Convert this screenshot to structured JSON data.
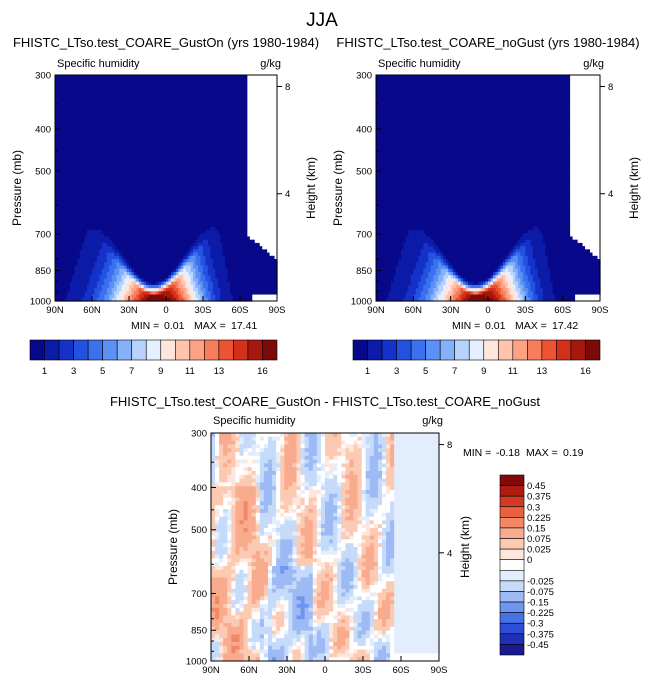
{
  "figure": {
    "title": "JJA"
  },
  "colors": {
    "abs_levels": [
      "#08088a",
      "#0c1ba8",
      "#1432c9",
      "#2452e0",
      "#3b70ee",
      "#5b90f5",
      "#85b1fa",
      "#b6d2fd",
      "#e6efff",
      "#ffe6dc",
      "#ffc4ad",
      "#fda283",
      "#f77d5b",
      "#ec5333",
      "#d42f1b",
      "#a8170e",
      "#7d0a0a"
    ],
    "diff_levels": [
      "#1a1a8f",
      "#1f2fb8",
      "#2d4fd8",
      "#4572e8",
      "#6e96f0",
      "#9dbaf5",
      "#c6daf9",
      "#e2eefd",
      "#ffffff",
      "#fde6dc",
      "#fccab3",
      "#f9ab8e",
      "#f38868",
      "#e8623f",
      "#d33a23",
      "#b01c12",
      "#820a0a"
    ]
  },
  "chart_data": [
    {
      "type": "heatmap",
      "title": "FHISTC_LTso.test_COARE_GustOn (yrs 1980-1984)",
      "left_string": "Specific humidity",
      "right_string": "g/kg",
      "xlabel": "",
      "ylabel": "Pressure (mb)",
      "ylabel_right": "Height (km)",
      "x_ticks": [
        "90N",
        "60N",
        "30N",
        "0",
        "30S",
        "60S",
        "90S"
      ],
      "x_tick_values": [
        90,
        60,
        30,
        0,
        -30,
        -60,
        -90
      ],
      "y_ticks": [
        "300",
        "400",
        "500",
        "700",
        "850",
        "1000"
      ],
      "y_tick_values": [
        300,
        400,
        500,
        700,
        850,
        1000
      ],
      "y_scale": "log",
      "right_ticks": [
        "8",
        "4"
      ],
      "right_tick_values": [
        8,
        4
      ],
      "stats": {
        "min_label": "MIN =",
        "min": "0.01",
        "max_label": "MAX =",
        "max": "17.41"
      },
      "colorbar_labels": [
        "1",
        "3",
        "5",
        "7",
        "9",
        "11",
        "13",
        "16"
      ],
      "colorbar_levels": 17,
      "colorbar_orientation": "horizontal",
      "colorbar_placement": "bottom"
    },
    {
      "type": "heatmap",
      "title": "FHISTC_LTso.test_COARE_noGust (yrs 1980-1984)",
      "left_string": "Specific humidity",
      "right_string": "g/kg",
      "xlabel": "",
      "ylabel": "Pressure (mb)",
      "ylabel_right": "Height (km)",
      "x_ticks": [
        "90N",
        "60N",
        "30N",
        "0",
        "30S",
        "60S",
        "90S"
      ],
      "x_tick_values": [
        90,
        60,
        30,
        0,
        -30,
        -60,
        -90
      ],
      "y_ticks": [
        "300",
        "400",
        "500",
        "700",
        "850",
        "1000"
      ],
      "y_tick_values": [
        300,
        400,
        500,
        700,
        850,
        1000
      ],
      "y_scale": "log",
      "right_ticks": [
        "8",
        "4"
      ],
      "right_tick_values": [
        8,
        4
      ],
      "stats": {
        "min_label": "MIN =",
        "min": "0.01",
        "max_label": "MAX =",
        "max": "17.42"
      },
      "colorbar_labels": [
        "1",
        "3",
        "5",
        "7",
        "9",
        "11",
        "13",
        "16"
      ],
      "colorbar_levels": 17,
      "colorbar_orientation": "horizontal",
      "colorbar_placement": "bottom"
    },
    {
      "type": "heatmap",
      "title": "FHISTC_LTso.test_COARE_GustOn - FHISTC_LTso.test_COARE_noGust",
      "left_string": "Specific humidity",
      "right_string": "g/kg",
      "xlabel": "",
      "ylabel": "Pressure (mb)",
      "ylabel_right": "Height (km)",
      "x_ticks": [
        "90N",
        "60N",
        "30N",
        "0",
        "30S",
        "60S",
        "90S"
      ],
      "x_tick_values": [
        90,
        60,
        30,
        0,
        -30,
        -60,
        -90
      ],
      "y_ticks": [
        "300",
        "400",
        "500",
        "700",
        "850",
        "1000"
      ],
      "y_tick_values": [
        300,
        400,
        500,
        700,
        850,
        1000
      ],
      "y_scale": "log",
      "right_ticks": [
        "8",
        "4"
      ],
      "right_tick_values": [
        8,
        4
      ],
      "stats": {
        "min_label": "MIN =",
        "min": "-0.18",
        "max_label": "MAX =",
        "max": "0.19"
      },
      "colorbar_labels": [
        "0.45",
        "0.375",
        "0.3",
        "0.225",
        "0.15",
        "0.075",
        "0.025",
        "0",
        "-0.025",
        "-0.075",
        "-0.15",
        "-0.225",
        "-0.3",
        "-0.375",
        "-0.45"
      ],
      "colorbar_levels": 17,
      "colorbar_orientation": "vertical",
      "colorbar_placement": "right"
    }
  ]
}
